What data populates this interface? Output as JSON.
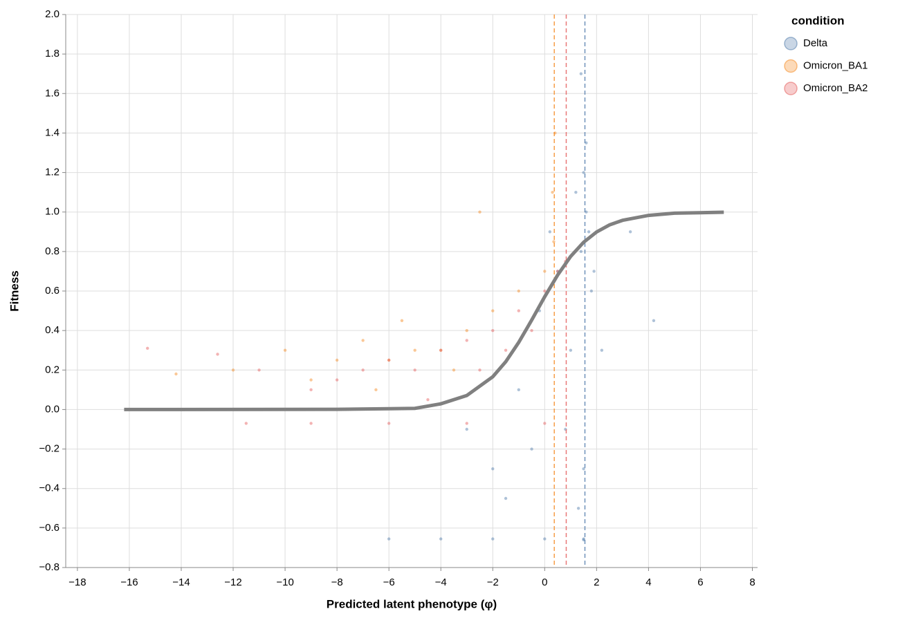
{
  "chart_data": {
    "type": "scatter",
    "x_label": "Predicted latent phenotype (φ)",
    "y_label": "Fitness",
    "legend_title": "condition",
    "legend_position": "top-right",
    "grid": true,
    "xlim": [
      -18.45,
      8.2
    ],
    "ylim": [
      -0.8,
      2.0
    ],
    "xticks": [
      {
        "value": -18,
        "label": "−18"
      },
      {
        "value": -16,
        "label": "−16"
      },
      {
        "value": -14,
        "label": "−14"
      },
      {
        "value": -12,
        "label": "−12"
      },
      {
        "value": -10,
        "label": "−10"
      },
      {
        "value": -8,
        "label": "−8"
      },
      {
        "value": -6,
        "label": "−6"
      },
      {
        "value": -4,
        "label": "−4"
      },
      {
        "value": -2,
        "label": "−2"
      },
      0,
      2,
      4,
      6,
      8
    ],
    "yticks": [
      {
        "value": -0.8,
        "label": "−0.8"
      },
      {
        "value": -0.6,
        "label": "−0.6"
      },
      {
        "value": -0.4,
        "label": "−0.4"
      },
      {
        "value": -0.2,
        "label": "−0.2"
      },
      {
        "value": 0,
        "label": "0.0"
      },
      0.2,
      0.4,
      0.6,
      0.8,
      {
        "value": 1,
        "label": "1.0"
      },
      1.2,
      1.4,
      1.6,
      1.8,
      {
        "value": 2,
        "label": "2.0"
      }
    ],
    "series": [
      {
        "name": "Delta",
        "color": "#4c78a8",
        "x": [
          1.5,
          1.6,
          1.4,
          1.7,
          1.2,
          1.8,
          1.0,
          0.8,
          1.5,
          1.3,
          0.5,
          -0.5,
          -1.0,
          -2.0,
          -1.5,
          -3.0,
          1.6,
          1.9,
          2.2,
          0.2,
          -0.2,
          1.5,
          -6.0,
          -4.0,
          -2.0,
          0.0,
          1.5,
          3.3,
          4.2,
          1.4
        ],
        "values": [
          1.2,
          1.0,
          0.8,
          0.9,
          1.1,
          0.6,
          0.3,
          -0.1,
          -0.3,
          -0.5,
          0.7,
          -0.2,
          0.1,
          -0.3,
          -0.45,
          -0.1,
          1.35,
          0.7,
          0.3,
          0.9,
          0.5,
          -0.66,
          -0.655,
          -0.655,
          -0.655,
          -0.655,
          -0.655,
          0.9,
          0.45,
          1.7
        ]
      },
      {
        "name": "Omicron_BA1",
        "color": "#f58518",
        "x": [
          -14.2,
          -12,
          -10,
          -9,
          -8,
          -7,
          -6,
          -5,
          -4,
          -3,
          -2,
          -1,
          0,
          0.3,
          -2.5,
          -5.5,
          -6.5,
          0.4,
          0.35,
          -3.5
        ],
        "values": [
          0.18,
          0.2,
          0.3,
          0.15,
          0.25,
          0.35,
          0.25,
          0.3,
          0.3,
          0.4,
          0.5,
          0.6,
          0.7,
          1.1,
          1.0,
          0.45,
          0.1,
          1.4,
          0.85,
          0.2
        ]
      },
      {
        "name": "Omicron_BA2",
        "color": "#e45756",
        "x": [
          -15.3,
          -12.6,
          -11,
          -9,
          -8,
          -7,
          -6,
          -5,
          -4,
          -3,
          -2,
          -1,
          0,
          0.5,
          0.8,
          -1.5,
          -0.5,
          -9,
          -6,
          -3,
          0,
          -11.5,
          -4.5,
          -2.5
        ],
        "values": [
          0.31,
          0.28,
          0.2,
          0.1,
          0.15,
          0.2,
          0.25,
          0.2,
          0.3,
          0.35,
          0.4,
          0.5,
          0.6,
          0.7,
          0.75,
          0.3,
          0.4,
          -0.07,
          -0.07,
          -0.07,
          -0.07,
          -0.07,
          0.05,
          0.2
        ]
      }
    ],
    "curve": {
      "color": "#808080",
      "x": [
        -16.2,
        -8,
        -6,
        -5,
        -4,
        -3,
        -2,
        -1.5,
        -1,
        -0.5,
        0,
        0.5,
        1,
        1.5,
        2,
        2.5,
        3,
        4,
        5,
        6.9
      ],
      "values": [
        0,
        0.001,
        0.004,
        0.006,
        0.029,
        0.071,
        0.166,
        0.242,
        0.34,
        0.453,
        0.571,
        0.681,
        0.775,
        0.847,
        0.899,
        0.935,
        0.958,
        0.983,
        0.994,
        0.999
      ]
    },
    "vlines": [
      {
        "value": 0.37,
        "color": "#f58518"
      },
      {
        "value": 0.83,
        "color": "#e45756"
      },
      {
        "value": 1.55,
        "color": "#4c78a8"
      }
    ]
  }
}
